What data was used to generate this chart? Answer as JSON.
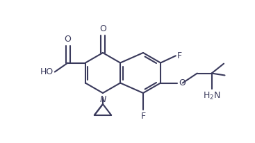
{
  "line_color": "#3a3a5c",
  "bg_color": "#ffffff",
  "lw": 1.5,
  "figsize": [
    3.67,
    2.06
  ],
  "dpi": 100,
  "xlim": [
    0,
    367
  ],
  "ylim": [
    0,
    206
  ]
}
